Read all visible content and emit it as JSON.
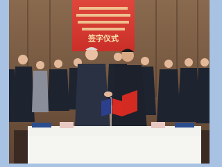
{
  "banner": {
    "title": "签字仪式"
  }
}
